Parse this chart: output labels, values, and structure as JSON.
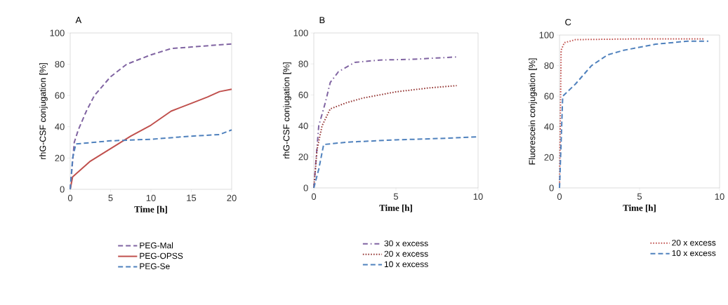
{
  "chart_data": [
    {
      "type": "line",
      "title": "A",
      "xlabel": "Time [h]",
      "ylabel": "rhG-CSF conjugation [%]",
      "xlim": [
        0,
        20
      ],
      "ylim": [
        0,
        100
      ],
      "xticks": [
        0,
        5,
        10,
        15,
        20
      ],
      "yticks": [
        0,
        20,
        40,
        60,
        80,
        100
      ],
      "legend": "bottom",
      "series": [
        {
          "name": "PEG-Mal",
          "color": "#8064a2",
          "line_style": "dashed",
          "x": [
            0,
            0.5,
            1,
            2,
            3,
            5,
            7,
            10,
            12.5,
            15,
            20
          ],
          "values": [
            0,
            30,
            38,
            50,
            60,
            72,
            80,
            86,
            90,
            91,
            93
          ]
        },
        {
          "name": "PEG-OPSS",
          "color": "#c0504d",
          "line_style": "solid",
          "x": [
            0,
            0.3,
            2.5,
            5,
            7.5,
            10,
            12.5,
            15,
            17,
            18.5,
            20
          ],
          "values": [
            0,
            8,
            18,
            26,
            34,
            41,
            50,
            55,
            59,
            62.5,
            64
          ]
        },
        {
          "name": "PEG-Se",
          "color": "#4f81bd",
          "line_style": "dashed",
          "x": [
            0,
            0.3,
            0.7,
            5,
            10,
            15,
            18.5,
            20
          ],
          "values": [
            0,
            20,
            29,
            31,
            32,
            34,
            35,
            38
          ]
        }
      ]
    },
    {
      "type": "line",
      "title": "B",
      "xlabel": "Time [h]",
      "ylabel": "rhG-CSF conjugation [%]",
      "xlim": [
        0,
        10
      ],
      "ylim": [
        0,
        100
      ],
      "xticks": [
        0,
        5,
        10
      ],
      "yticks": [
        0,
        20,
        40,
        60,
        80,
        100
      ],
      "legend": "bottom",
      "series": [
        {
          "name": "30 x excess",
          "color": "#8064a2",
          "line_style": "dashdot",
          "x": [
            0,
            0.3,
            0.7,
            1,
            1.5,
            2.5,
            4,
            6,
            8.7
          ],
          "values": [
            0,
            40,
            55,
            68,
            75,
            81,
            82.5,
            83,
            84.5
          ]
        },
        {
          "name": "20 x excess",
          "color": "#953735",
          "line_style": "dotted",
          "x": [
            0,
            0.2,
            0.5,
            1,
            2,
            3,
            5,
            7,
            8.7
          ],
          "values": [
            0,
            25,
            40,
            51,
            55,
            58,
            62,
            64.5,
            66
          ]
        },
        {
          "name": "10 x excess",
          "color": "#4f81bd",
          "line_style": "dashed",
          "x": [
            0,
            0.3,
            0.6,
            2,
            5,
            8,
            10
          ],
          "values": [
            0,
            12,
            28,
            29.5,
            31,
            32,
            33
          ]
        }
      ]
    },
    {
      "type": "line",
      "title": "C",
      "xlabel": "Time [h]",
      "ylabel": "Fluorescein conjugation [%]",
      "xlim": [
        0,
        10
      ],
      "ylim": [
        0,
        100
      ],
      "xticks": [
        0,
        5,
        10
      ],
      "yticks": [
        0,
        20,
        40,
        60,
        80,
        100
      ],
      "legend": "bottom right",
      "series": [
        {
          "name": "20 x excess",
          "color": "#c0504d",
          "line_style": "dotted",
          "x": [
            0,
            0.1,
            0.3,
            1,
            5,
            9
          ],
          "values": [
            0,
            90,
            95,
            97,
            97.5,
            97.5
          ]
        },
        {
          "name": "10 x excess",
          "color": "#4f81bd",
          "line_style": "dashed",
          "x": [
            0,
            0.1,
            0.2,
            1,
            2,
            3,
            4,
            6,
            8,
            9.3
          ],
          "values": [
            0,
            30,
            60,
            68,
            80,
            87,
            90,
            94,
            96,
            96
          ]
        }
      ]
    }
  ]
}
